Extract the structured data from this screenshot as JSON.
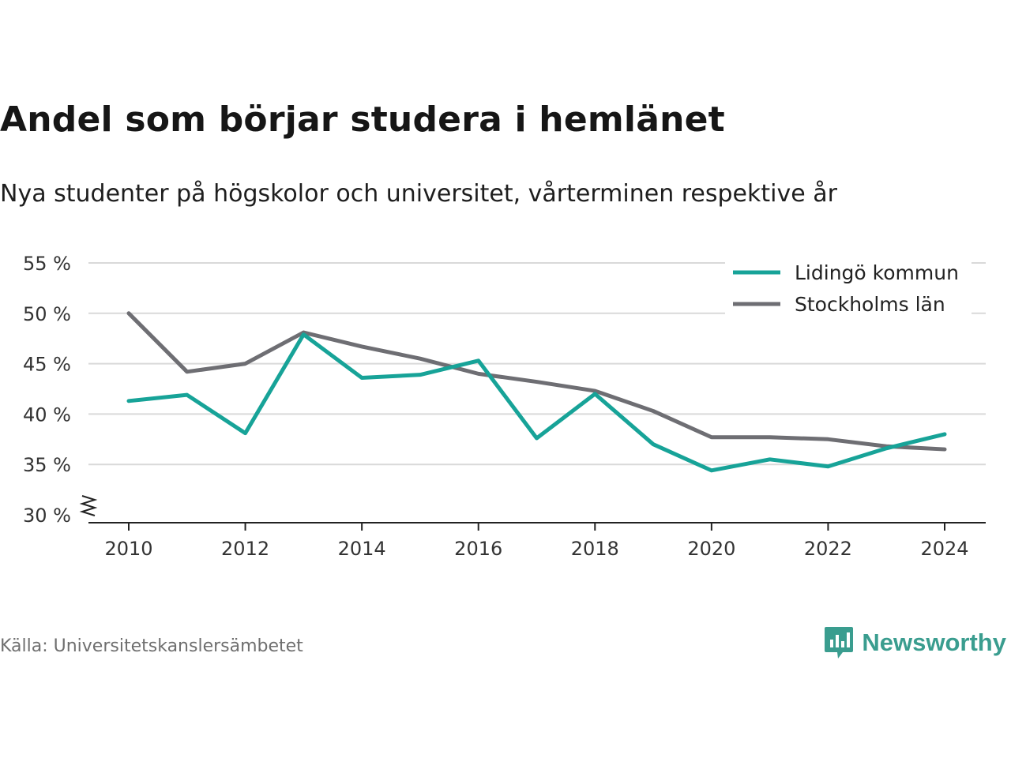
{
  "title": "Andel som börjar studera i hemlänet",
  "subtitle": "Nya studenter på högskolor och universitet, vårterminen respektive år",
  "source": "Källa: Universitetskanslersämbetet",
  "brand": {
    "name": "Newsworthy",
    "icon": "newsworthy-logo-icon",
    "color": "#3a9d8f"
  },
  "chart_data": {
    "type": "line",
    "x": [
      2010,
      2011,
      2012,
      2013,
      2014,
      2015,
      2016,
      2017,
      2018,
      2019,
      2020,
      2021,
      2022,
      2023,
      2024
    ],
    "series": [
      {
        "name": "Lidingö kommun",
        "color": "#17a398",
        "values": [
          41.3,
          41.9,
          38.1,
          47.9,
          43.6,
          43.9,
          45.3,
          37.6,
          42.0,
          37.0,
          34.4,
          35.5,
          34.8,
          36.6,
          38.0
        ]
      },
      {
        "name": "Stockholms län",
        "color": "#6e6e73",
        "values": [
          50.0,
          44.2,
          45.0,
          48.1,
          46.7,
          45.5,
          44.0,
          43.2,
          42.3,
          40.3,
          37.7,
          37.7,
          37.5,
          36.8,
          36.5
        ]
      }
    ],
    "xticks": [
      "2010",
      "2012",
      "2014",
      "2016",
      "2018",
      "2020",
      "2022",
      "2024"
    ],
    "yticks": [
      "30 %",
      "35 %",
      "40 %",
      "45 %",
      "50 %",
      "55 %"
    ],
    "ylim": [
      30,
      55
    ],
    "xlim": [
      2010,
      2024
    ],
    "grid": "horizontal",
    "axis_break": true,
    "legend": "top-right"
  }
}
